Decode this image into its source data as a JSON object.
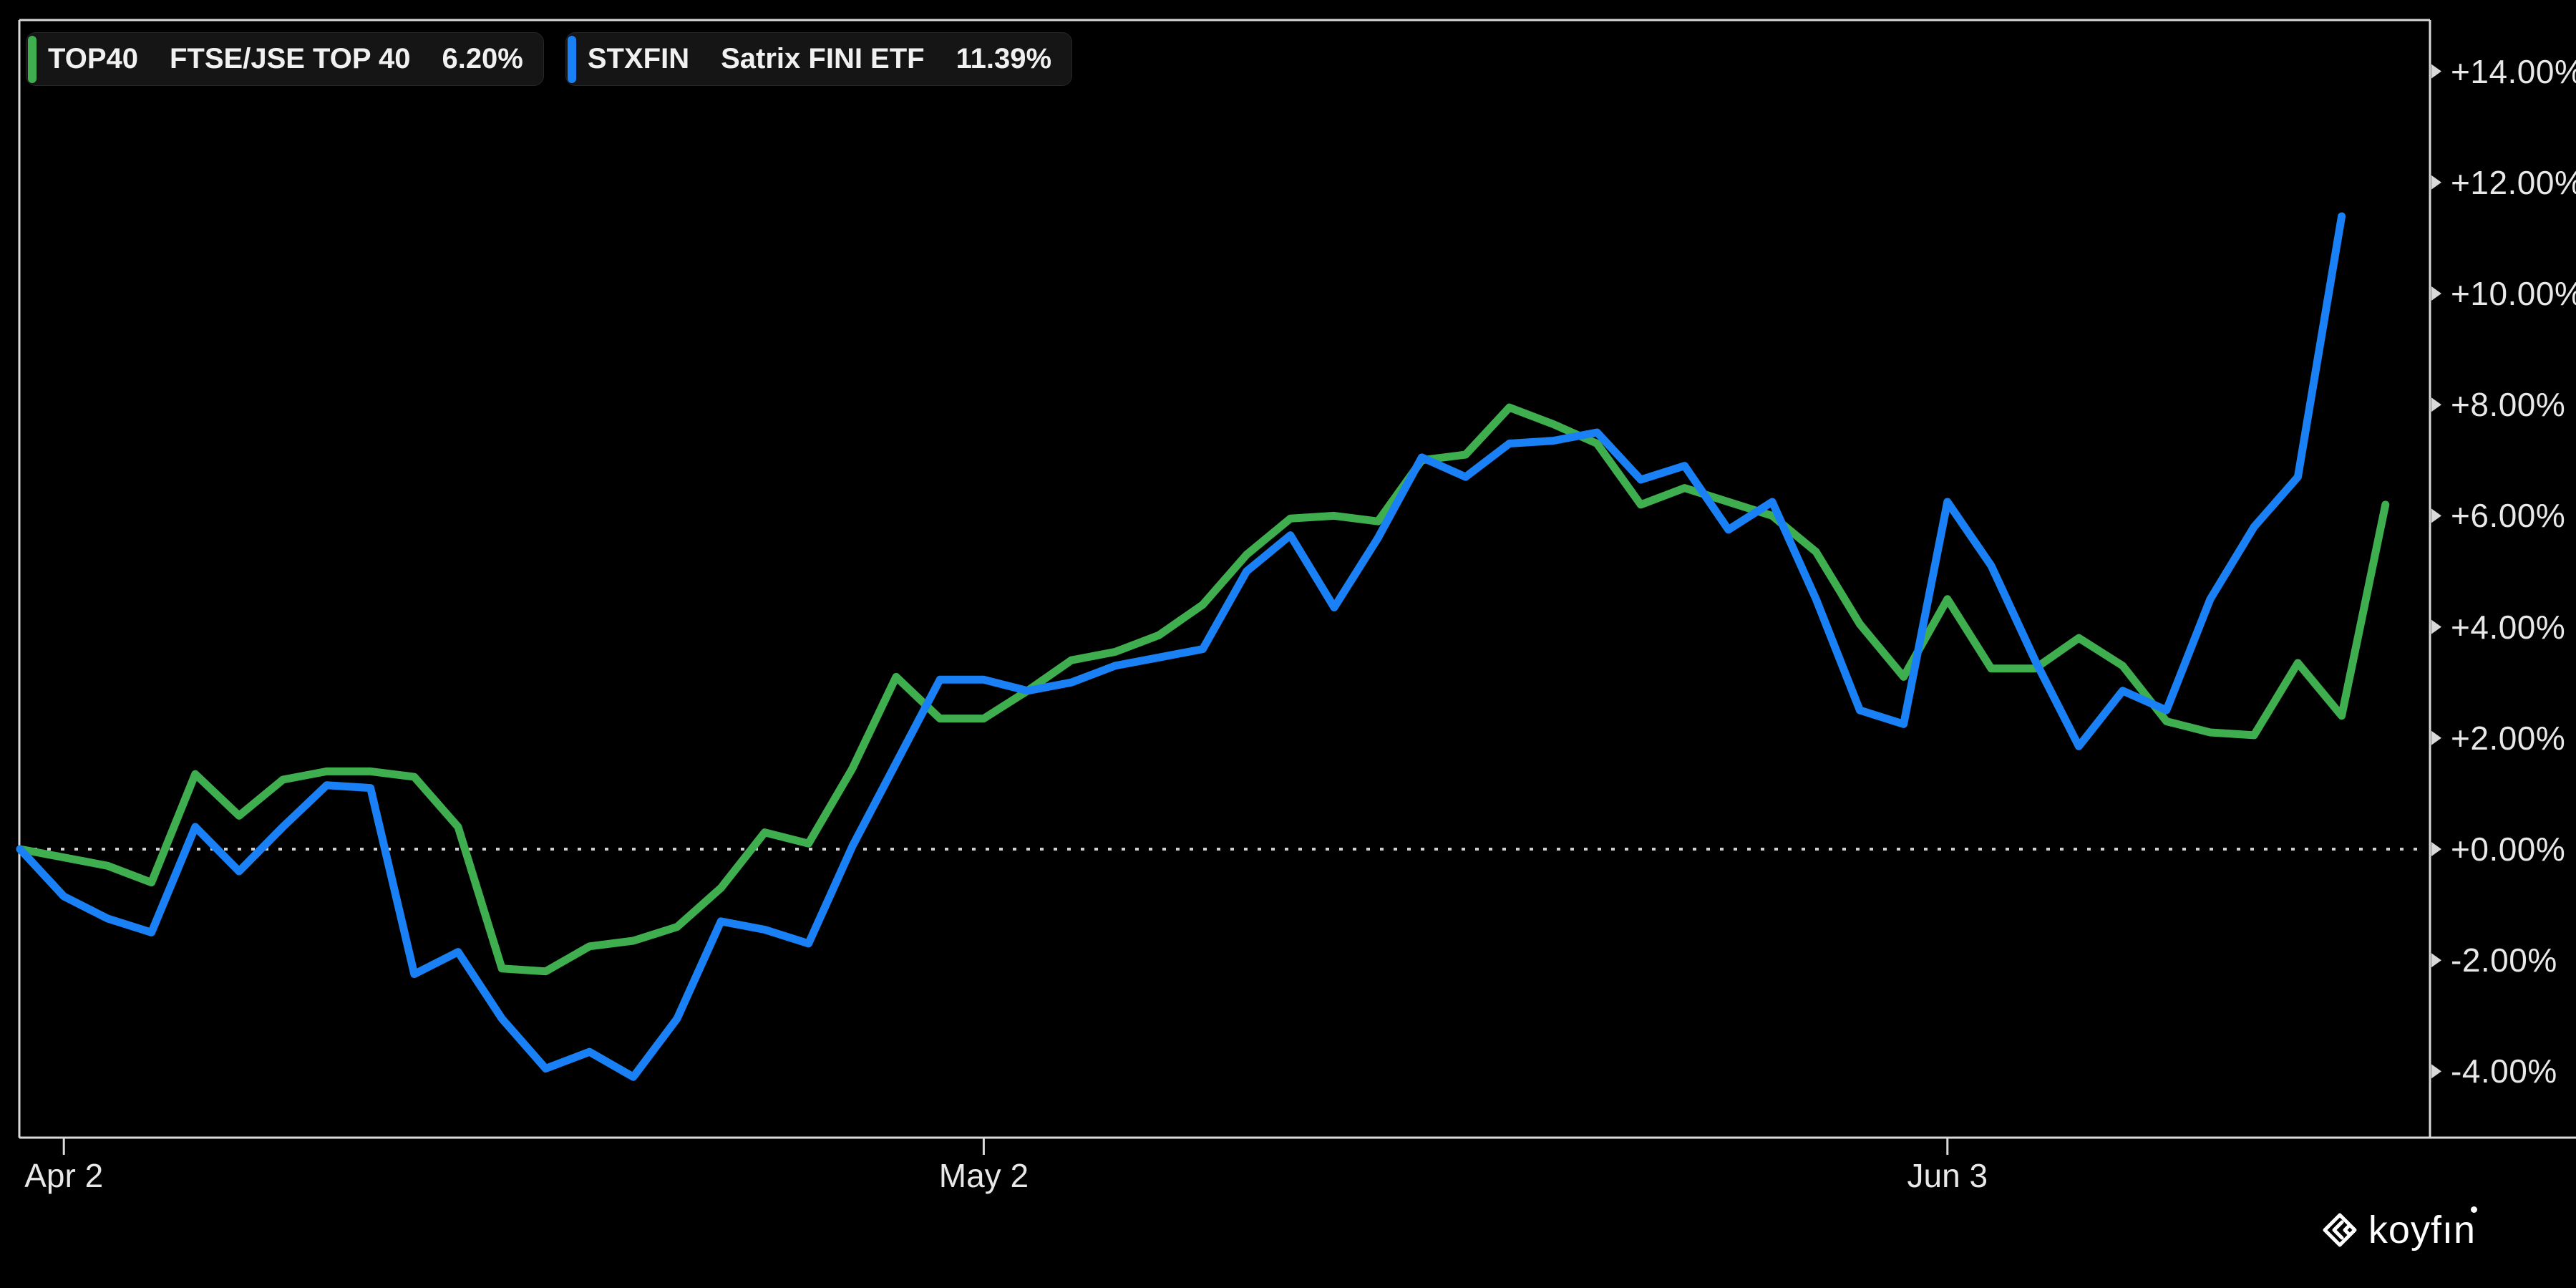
{
  "legend": [
    {
      "ticker": "TOP40",
      "name": "FTSE/JSE TOP 40",
      "change": "6.20%",
      "color": "#3fae4f"
    },
    {
      "ticker": "STXFIN",
      "name": "Satrix FINI ETF",
      "change": "11.39%",
      "color": "#1a80f5"
    }
  ],
  "watermark_text": "koyfın",
  "chart_data": {
    "type": "line",
    "title": "",
    "x_unit": "trading days (first point = 0% baseline, Apr 1 start; ticks mark Apr 2, May 2, Jun 3)",
    "y_unit": "% total return",
    "ylim": [
      -5.4,
      14.9
    ],
    "grid": "zero-dotted-line-only",
    "legend_position": "top-left",
    "y_ticks": [
      {
        "label": "+14.00%",
        "value": 14
      },
      {
        "label": "+12.00%",
        "value": 12
      },
      {
        "label": "+10.00%",
        "value": 10
      },
      {
        "label": "+8.00%",
        "value": 8
      },
      {
        "label": "+6.00%",
        "value": 6
      },
      {
        "label": "+4.00%",
        "value": 4
      },
      {
        "label": "+2.00%",
        "value": 2
      },
      {
        "label": "+0.00%",
        "value": 0
      },
      {
        "label": "-2.00%",
        "value": -2
      },
      {
        "label": "-4.00%",
        "value": -4
      }
    ],
    "x_ticks": [
      {
        "label": "Apr 2",
        "day": 1
      },
      {
        "label": "May 2",
        "day": 22
      },
      {
        "label": "Jun 3",
        "day": 44
      }
    ],
    "series": [
      {
        "name": "TOP40 FTSE/JSE TOP 40",
        "color": "#3fae4f",
        "final_change_pct": 6.2,
        "values": [
          0.0,
          -0.15,
          -0.3,
          -0.6,
          1.35,
          0.6,
          1.25,
          1.4,
          1.4,
          1.3,
          0.4,
          -2.15,
          -2.2,
          -1.75,
          -1.65,
          -1.4,
          -0.7,
          0.3,
          0.1,
          1.45,
          3.1,
          2.35,
          2.35,
          2.85,
          3.4,
          3.55,
          3.85,
          4.4,
          5.3,
          5.95,
          6.0,
          5.9,
          7.0,
          7.1,
          7.95,
          7.65,
          7.3,
          6.2,
          6.5,
          6.25,
          6.0,
          5.35,
          4.05,
          3.1,
          4.5,
          3.25,
          3.25,
          3.8,
          3.3,
          2.3,
          2.1,
          2.05,
          3.35,
          2.4,
          6.2
        ]
      },
      {
        "name": "STXFIN Satrix FINI ETF",
        "color": "#1a80f5",
        "final_change_pct": 11.39,
        "values": [
          0.0,
          -0.85,
          -1.25,
          -1.5,
          0.4,
          -0.4,
          0.4,
          1.15,
          1.1,
          -2.25,
          -1.85,
          -3.05,
          -3.95,
          -3.65,
          -4.1,
          -3.05,
          -1.3,
          -1.45,
          -1.7,
          0.05,
          1.55,
          3.05,
          3.05,
          2.85,
          3.0,
          3.3,
          3.45,
          3.6,
          5.0,
          5.65,
          4.35,
          5.6,
          7.05,
          6.7,
          7.3,
          7.35,
          7.5,
          6.65,
          6.9,
          5.75,
          6.25,
          4.5,
          2.5,
          2.25,
          6.25,
          5.1,
          3.4,
          1.85,
          2.85,
          2.5,
          4.5,
          5.8,
          6.7,
          11.39
        ]
      }
    ]
  }
}
